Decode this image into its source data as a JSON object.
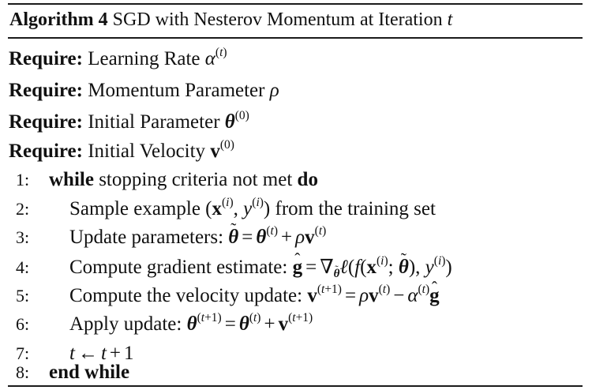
{
  "caption": {
    "label": "Algorithm 4",
    "title": "SGD with Nesterov Momentum at Iteration"
  },
  "requires": [
    {
      "keyword": "Require:",
      "text": "Learning Rate"
    },
    {
      "keyword": "Require:",
      "text": "Momentum Parameter"
    },
    {
      "keyword": "Require:",
      "text": "Initial Parameter"
    },
    {
      "keyword": "Require:",
      "text": "Initial Velocity"
    }
  ],
  "steps": [
    {
      "num": "1:",
      "kw": "while",
      "text": "stopping criteria not met",
      "kw2": "do"
    },
    {
      "num": "2:",
      "text": "Sample example",
      "text2": "from the training set"
    },
    {
      "num": "3:",
      "text": "Update parameters:"
    },
    {
      "num": "4:",
      "text": "Compute gradient estimate:"
    },
    {
      "num": "5:",
      "text": "Compute the velocity update:"
    },
    {
      "num": "6:",
      "text": "Apply update:"
    },
    {
      "num": "7:"
    },
    {
      "num": "8:",
      "kw": "end while"
    }
  ]
}
